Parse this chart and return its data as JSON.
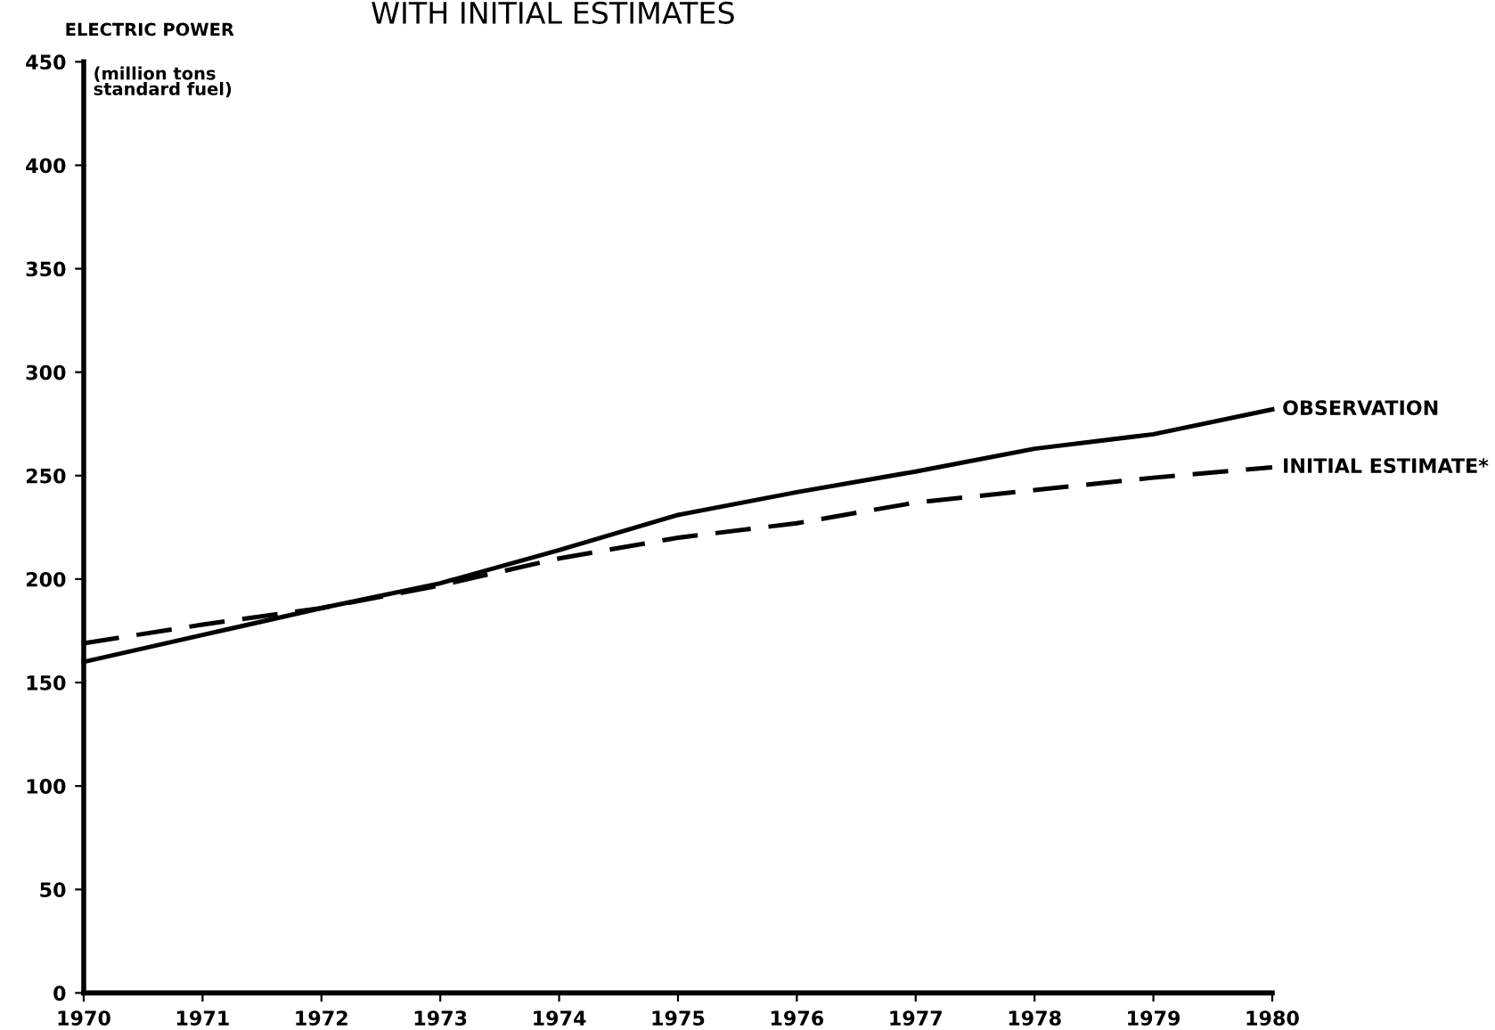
{
  "chart_data": {
    "type": "line",
    "title": "WITH INITIAL ESTIMATES",
    "ylabel": "ELECTRIC POWER",
    "annotations": [
      "(million tons\nstandard fuel)"
    ],
    "x": [
      1970,
      1971,
      1972,
      1973,
      1974,
      1975,
      1976,
      1977,
      1978,
      1979,
      1980
    ],
    "series": [
      {
        "name": "OBSERVATION",
        "color": "#000000",
        "line_style": "solid",
        "values": [
          160,
          173,
          186,
          198,
          214,
          231,
          242,
          252,
          263,
          270,
          282
        ]
      },
      {
        "name": "INITIAL ESTIMATE*",
        "color": "#000000",
        "line_style": "dashed",
        "values": [
          169,
          178,
          186,
          197,
          210,
          220,
          227,
          237,
          243,
          249,
          254
        ]
      }
    ],
    "xlim": [
      1970,
      1980
    ],
    "xticks": [
      1970,
      1971,
      1972,
      1973,
      1974,
      1975,
      1976,
      1977,
      1978,
      1979,
      1980
    ],
    "ylim": [
      0,
      450
    ],
    "yticks": [
      0,
      50,
      100,
      150,
      200,
      250,
      300,
      350,
      400,
      450
    ],
    "grid": false,
    "legend": false,
    "marker": "none"
  }
}
